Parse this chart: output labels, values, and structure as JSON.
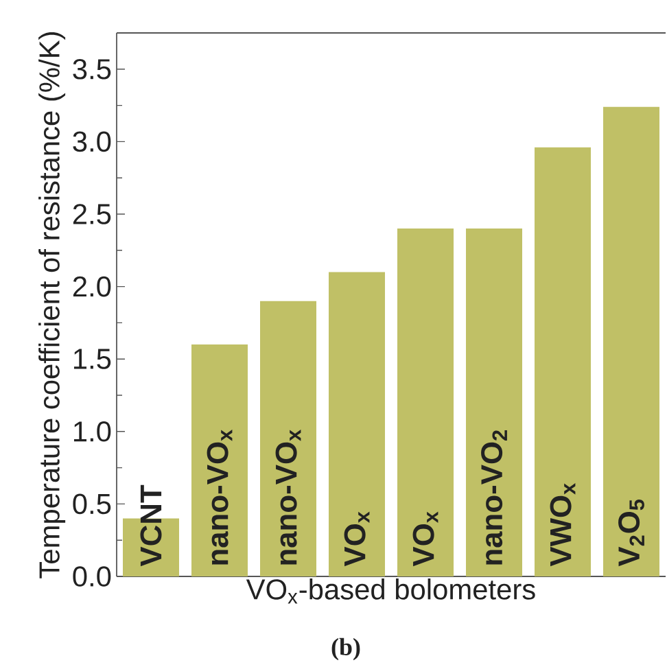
{
  "chart_data": {
    "type": "bar",
    "categories": [
      "VCNT",
      "nano-VO$_{x}$",
      "nano-VO$_{x}$",
      "VO$_{x}$",
      "VO$_{x}$",
      "nano-VO$_{2}$",
      "VWO$_{x}$",
      "V$_{2}$O$_{5}$"
    ],
    "values": [
      0.4,
      1.6,
      1.9,
      2.1,
      2.4,
      2.4,
      2.96,
      3.24
    ],
    "color": "#c0c066",
    "xlabel": "VO$_{x}$-based bolometers",
    "ylabel": "Temperature coefficient of resistance (%/K)",
    "ylim": [
      0,
      3.75
    ],
    "yticks": [
      {
        "value": 0,
        "label": "0.0"
      },
      {
        "value": 0.25,
        "label": null
      },
      0.5,
      {
        "value": 0.75,
        "label": null
      },
      {
        "value": 1,
        "label": "1.0"
      },
      {
        "value": 1.25,
        "label": null
      },
      1.5,
      {
        "value": 1.75,
        "label": null
      },
      {
        "value": 2,
        "label": "2.0"
      },
      {
        "value": 2.25,
        "label": null
      },
      2.5,
      {
        "value": 2.75,
        "label": null
      },
      {
        "value": 3,
        "label": "3.0"
      },
      {
        "value": 3.25,
        "label": null
      },
      3.5
    ],
    "annotations": [
      "(b)"
    ]
  }
}
